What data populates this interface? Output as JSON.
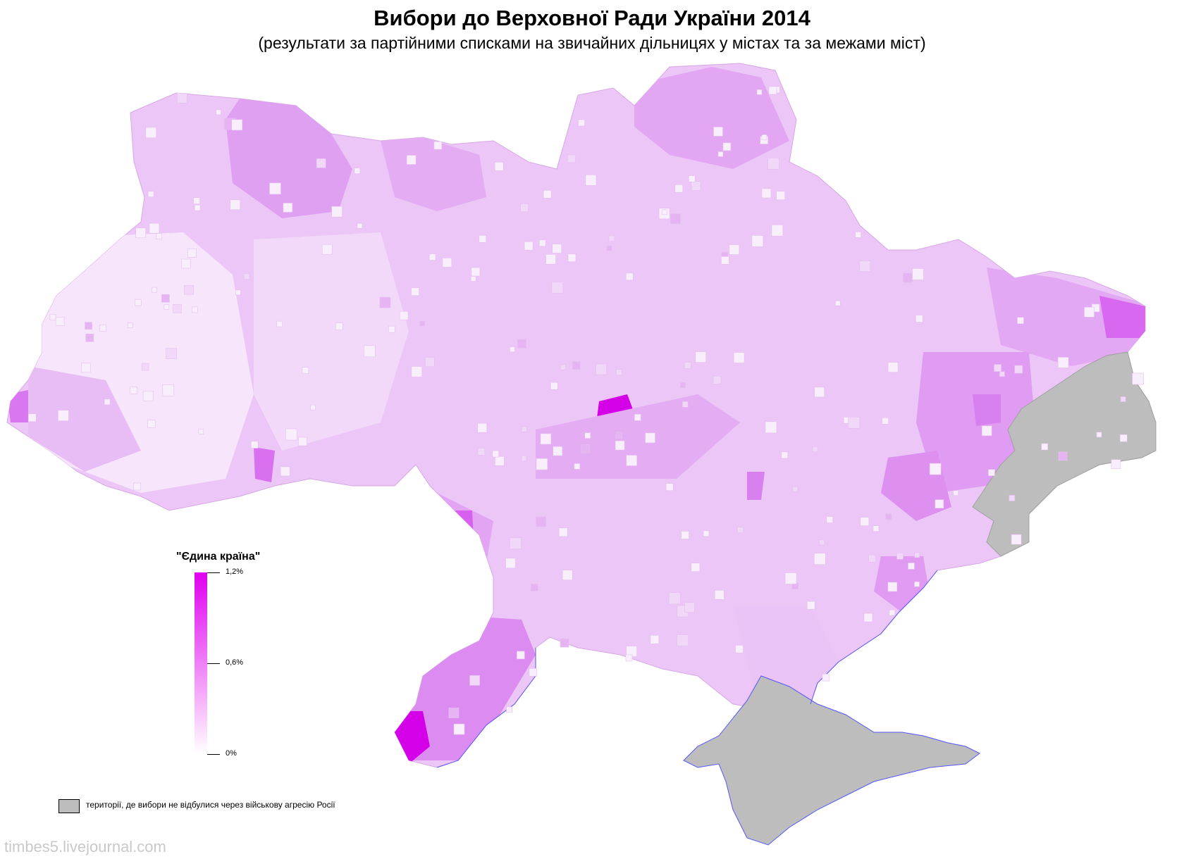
{
  "header": {
    "title": "Вибори до Верховної Ради України 2014",
    "subtitle": "(результати за партійними списками на звичайних дільницях у містах та за межами міст)"
  },
  "legend": {
    "title": "\"Єдина країна\"",
    "ticks": [
      {
        "label": "1,2%",
        "value": 1.2
      },
      {
        "label": "0,6%",
        "value": 0.6
      },
      {
        "label": "0%",
        "value": 0
      }
    ],
    "color_max": "#e000f0",
    "color_min": "#ffffff",
    "no_data_label": "території, де вибори не відбулися через військову агресію Росії",
    "no_data_color": "#bdbdbd"
  },
  "watermark": "timbes5.livejournal.com",
  "map": {
    "type": "choropleth",
    "party": "Єдина країна",
    "palette": {
      "very_light": "#f7e6fb",
      "light": "#eecdf6",
      "medium": "#e6b4f3",
      "strong": "#dc8cf0",
      "peak": "#d400e8",
      "no_data": "#bdbdbd",
      "coast": "#5555ff"
    }
  }
}
